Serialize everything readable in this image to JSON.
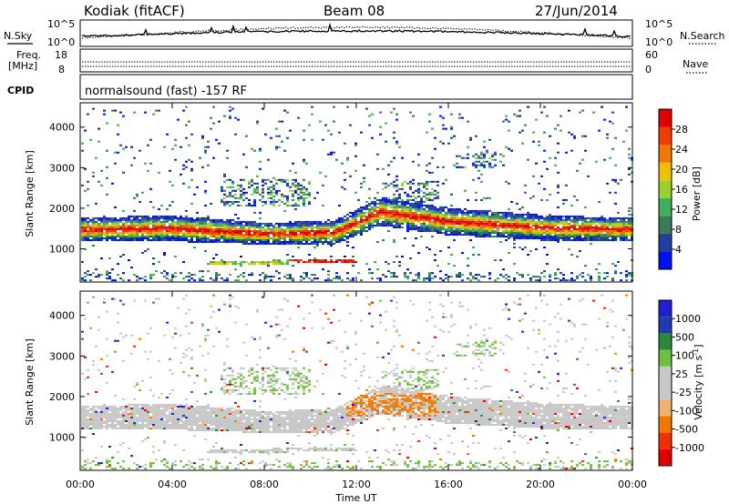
{
  "header": {
    "title": "Kodiak (fitACF)",
    "beam": "Beam 08",
    "date": "27/Jun/2014"
  },
  "params": {
    "nsky_label": "N.Sky",
    "nsearch_label": "N.Search",
    "freq_label_1": "Freq.",
    "freq_label_2": "[MHz]",
    "nave_label": "Nave",
    "cpid_label": "CPID",
    "cpid_text": "normalsound (fast) -157 RF",
    "noise_ticks_left": [
      "10^5",
      "10^0"
    ],
    "noise_ticks_right": [
      "10^5",
      "10^0"
    ],
    "freq_ticks": [
      "18",
      "8"
    ],
    "nave_ticks": [
      "60",
      "0"
    ]
  },
  "colors": {
    "power_scale": [
      "#0010f0",
      "#2040a0",
      "#3a7a5a",
      "#3fae5a",
      "#9ad02a",
      "#f0c000",
      "#f07800",
      "#f03c00",
      "#e00000"
    ],
    "velocity_scale": [
      "#e00000",
      "#f03000",
      "#f07800",
      "#f0b070",
      "#c8c8c8",
      "#c8c8c8",
      "#70c040",
      "#2a8a3a",
      "#203ab0",
      "#2020d0"
    ]
  },
  "chart_data": [
    {
      "type": "heatmap",
      "title": "",
      "xlabel": "Time UT",
      "ylabel": "Slant Range [km]",
      "x_ticks": [
        "00:00",
        "04:00",
        "08:00",
        "12:00",
        "16:00",
        "20:00",
        "00:00"
      ],
      "y_ticks": [
        "1000",
        "2000",
        "3000",
        "4000"
      ],
      "ylim": [
        180,
        4600
      ],
      "xlim_hours": [
        0,
        24
      ],
      "colorbar": {
        "label": "Power [dB]",
        "ticks": [
          "28",
          "24",
          "20",
          "16",
          "12",
          "8",
          "4"
        ],
        "range": [
          0,
          30
        ]
      },
      "main_band_km": [
        {
          "hour": 0,
          "center": 1450,
          "halfwidth": 220
        },
        {
          "hour": 4,
          "center": 1480,
          "halfwidth": 240
        },
        {
          "hour": 8,
          "center": 1350,
          "halfwidth": 200
        },
        {
          "hour": 11,
          "center": 1380,
          "halfwidth": 220
        },
        {
          "hour": 13,
          "center": 1900,
          "halfwidth": 260
        },
        {
          "hour": 16,
          "center": 1650,
          "halfwidth": 250
        },
        {
          "hour": 20,
          "center": 1500,
          "halfwidth": 230
        },
        {
          "hour": 24,
          "center": 1450,
          "halfwidth": 210
        }
      ],
      "near_echo_km": [
        {
          "hour": 7,
          "center": 620,
          "halfwidth": 50
        },
        {
          "hour": 11,
          "center": 690,
          "halfwidth": 50
        }
      ]
    },
    {
      "type": "heatmap",
      "title": "",
      "xlabel": "Time UT",
      "ylabel": "Slant Range [km]",
      "x_ticks": [
        "00:00",
        "04:00",
        "08:00",
        "12:00",
        "16:00",
        "20:00",
        "00:00"
      ],
      "y_ticks": [
        "1000",
        "2000",
        "3000",
        "4000"
      ],
      "ylim": [
        180,
        4600
      ],
      "xlim_hours": [
        0,
        24
      ],
      "colorbar": {
        "label": "Velocity [m s^-1]",
        "ticks": [
          "1000",
          "500",
          "100",
          "25",
          "-25",
          "-100",
          "-500",
          "-1000"
        ],
        "range": [
          -1000,
          1000
        ]
      }
    }
  ]
}
